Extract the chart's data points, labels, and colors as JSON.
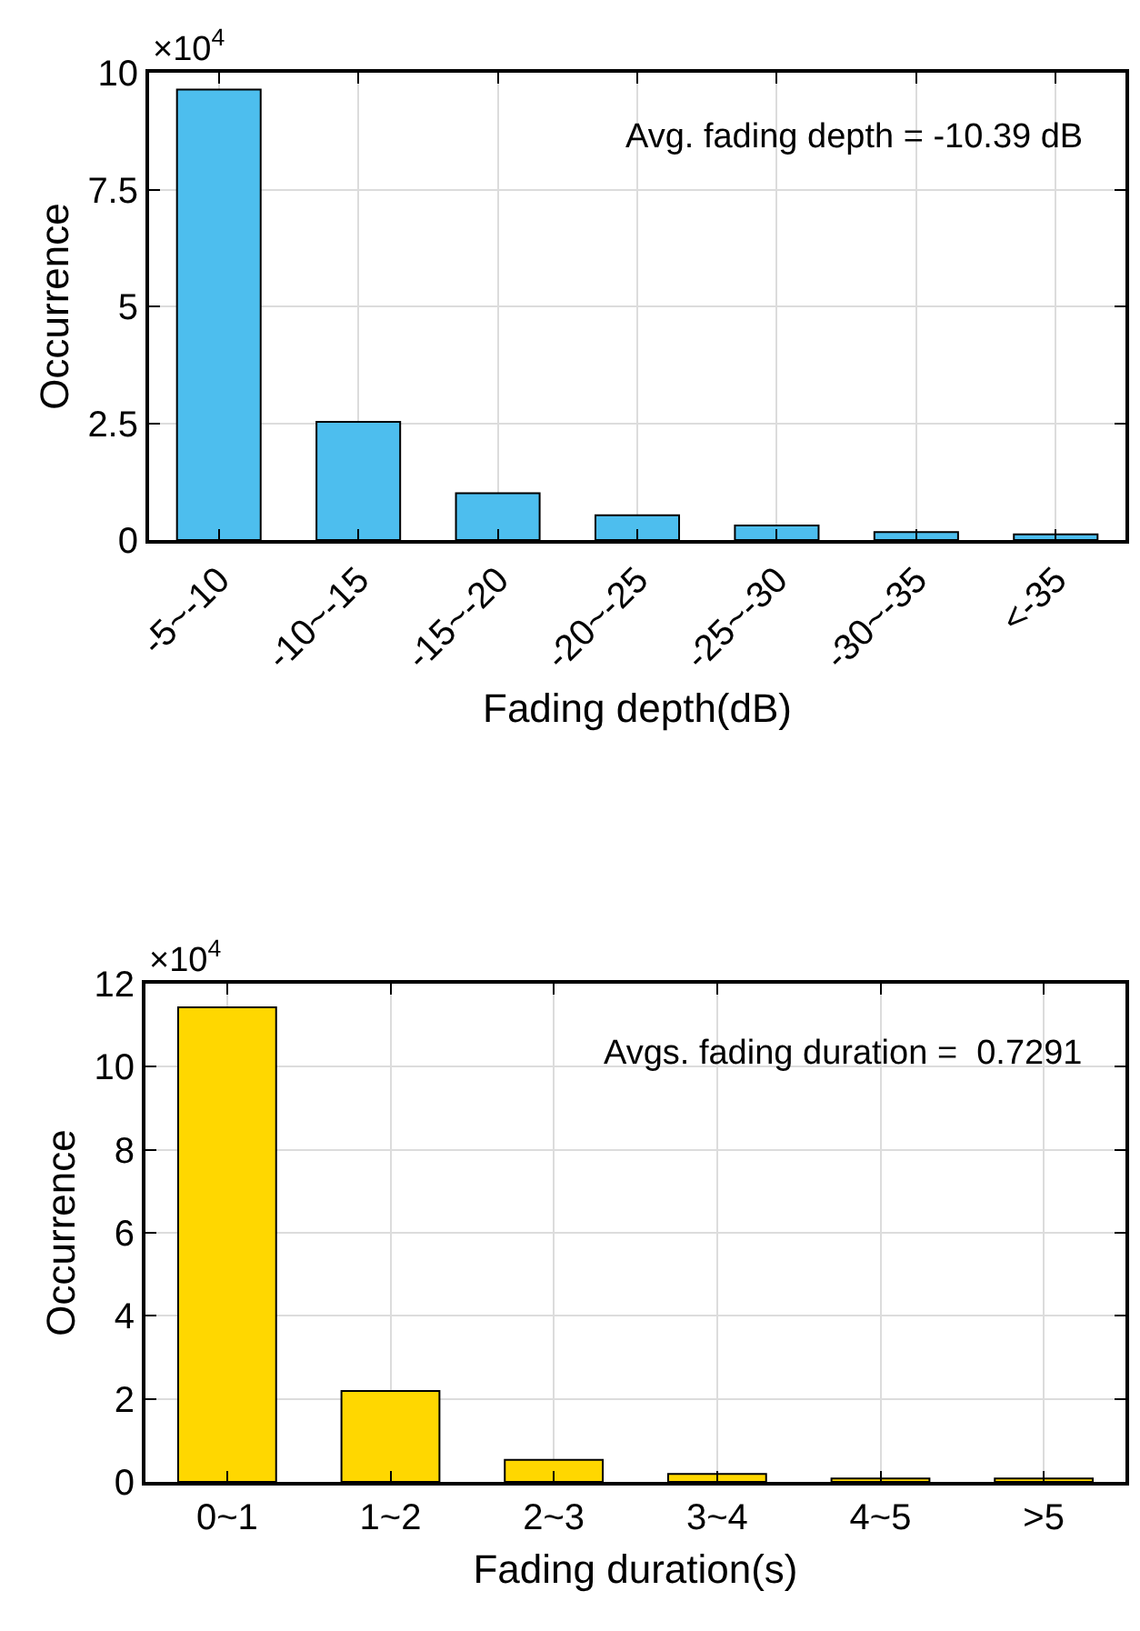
{
  "chart_data": [
    {
      "type": "bar",
      "categories": [
        "-5~-10",
        "-10~-15",
        "-15~-20",
        "-20~-25",
        "-25~-30",
        "-30~-35",
        "<-35"
      ],
      "values": [
        9.64,
        2.53,
        1.0,
        0.53,
        0.31,
        0.17,
        0.12
      ],
      "color": "#4dbeee",
      "ylim": [
        0,
        10
      ],
      "yticks": [
        0,
        2.5,
        5,
        7.5,
        10
      ],
      "xlabel": "Fading depth(dB)",
      "ylabel": "Occurrence",
      "annotations": [
        "×10$^{4}$",
        "Avg. fading depth = -10.39 dB"
      ],
      "grid": true,
      "legend": false
    },
    {
      "type": "bar",
      "categories": [
        "0~1",
        "1~2",
        "2~3",
        "3~4",
        "4~5",
        ">5"
      ],
      "values": [
        11.43,
        2.19,
        0.53,
        0.19,
        0.08,
        0.08
      ],
      "color": "#ffd700",
      "ylim": [
        0,
        12
      ],
      "yticks": [
        0,
        2,
        4,
        6,
        8,
        10,
        12
      ],
      "xlabel": "Fading duration(s)",
      "ylabel": "Occurrence",
      "annotations": [
        "×10$^{4}$",
        "Avgs. fading duration =  0.7291"
      ],
      "grid": true,
      "legend": false
    }
  ]
}
